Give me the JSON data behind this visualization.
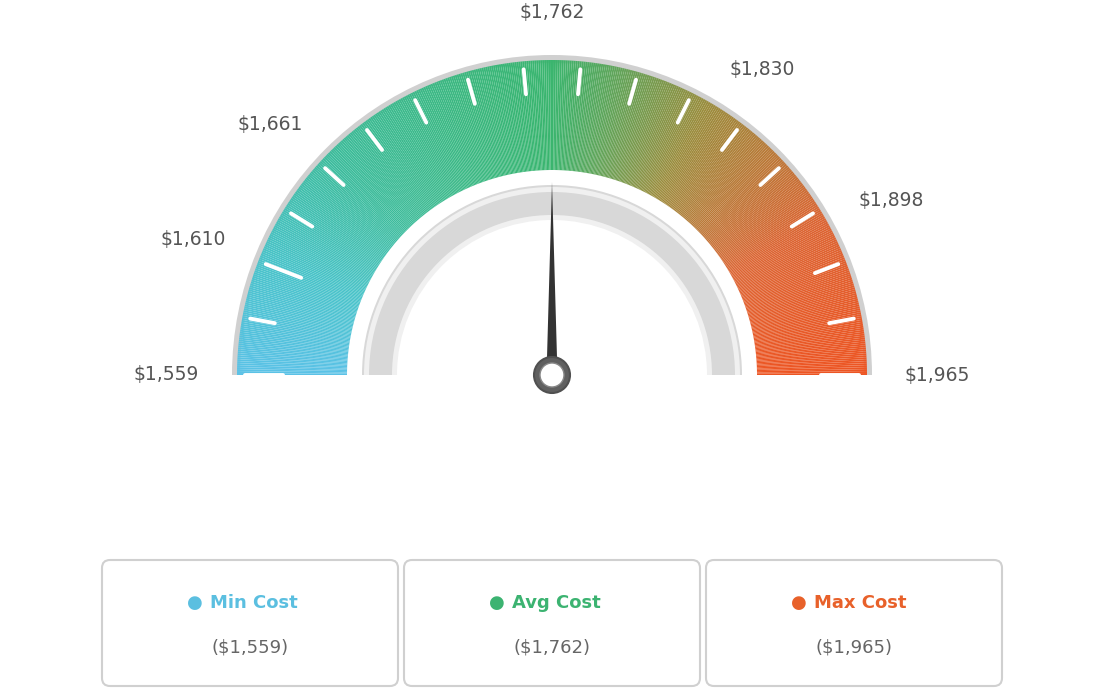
{
  "min_val": 1559,
  "max_val": 1965,
  "avg_val": 1762,
  "tick_labels": [
    "$1,559",
    "$1,610",
    "$1,661",
    "$1,762",
    "$1,830",
    "$1,898",
    "$1,965"
  ],
  "tick_values": [
    1559,
    1610,
    1661,
    1762,
    1830,
    1898,
    1965
  ],
  "color_stops": [
    [
      1559,
      [
        91,
        194,
        231
      ]
    ],
    [
      1610,
      [
        72,
        195,
        200
      ]
    ],
    [
      1661,
      [
        60,
        188,
        155
      ]
    ],
    [
      1762,
      [
        58,
        181,
        110
      ]
    ],
    [
      1830,
      [
        155,
        140,
        60
      ]
    ],
    [
      1898,
      [
        220,
        100,
        50
      ]
    ],
    [
      1965,
      [
        237,
        85,
        35
      ]
    ]
  ],
  "colors": {
    "min_dot": "#5bbfe0",
    "avg_dot": "#3cb371",
    "max_dot": "#e8612a",
    "needle": "#4a4a4a",
    "needle_dark": "#333333",
    "background": "#ffffff",
    "box_border": "#dddddd",
    "text_dark": "#555555",
    "gauge_outer_border": "#d0d0d0",
    "inner_track": "#d8d8d8",
    "inner_track_highlight": "#f0f0f0"
  },
  "legend_items": [
    {
      "label": "Min Cost",
      "value": "($1,559)",
      "dot_color": "#5bbfe0"
    },
    {
      "label": "Avg Cost",
      "value": "($1,762)",
      "dot_color": "#3cb371"
    },
    {
      "label": "Max Cost",
      "value": "($1,965)",
      "dot_color": "#e8612a"
    }
  ],
  "figsize": [
    11.04,
    6.9
  ],
  "dpi": 100
}
